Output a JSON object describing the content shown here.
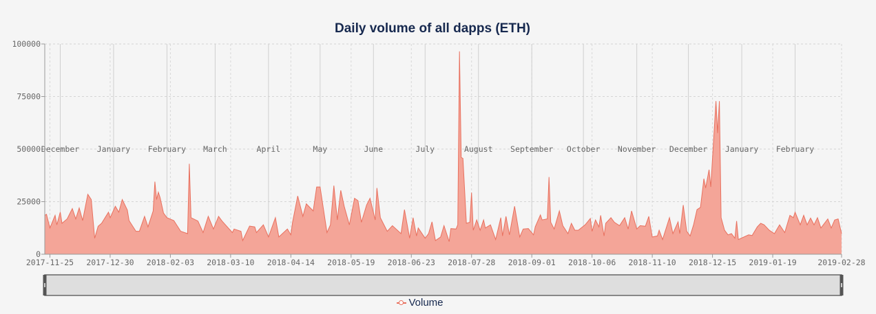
{
  "chart_data": {
    "type": "area",
    "title": "Daily volume of all dapps (ETH)",
    "xlabel": "",
    "ylabel": "",
    "ylim": [
      0,
      100000
    ],
    "xlim": [
      "2017-11-22",
      "2019-02-28"
    ],
    "grid": true,
    "legend_position": "bottom",
    "y_ticks": [
      "0",
      "25000",
      "50000",
      "75000",
      "100000"
    ],
    "x_ticks": [
      "2017-11-25",
      "2017-12-30",
      "2018-02-03",
      "2018-03-10",
      "2018-04-14",
      "2018-05-19",
      "2018-06-23",
      "2018-07-28",
      "2018-09-01",
      "2018-10-06",
      "2018-11-10",
      "2018-12-15",
      "2019-01-19",
      "2019-02-28"
    ],
    "month_markers": [
      {
        "date": "2017-12-01",
        "label": "December"
      },
      {
        "date": "2018-01-01",
        "label": "January"
      },
      {
        "date": "2018-02-01",
        "label": "February"
      },
      {
        "date": "2018-03-01",
        "label": "March"
      },
      {
        "date": "2018-04-01",
        "label": "April"
      },
      {
        "date": "2018-05-01",
        "label": "May"
      },
      {
        "date": "2018-06-01",
        "label": "June"
      },
      {
        "date": "2018-07-01",
        "label": "July"
      },
      {
        "date": "2018-08-01",
        "label": "August"
      },
      {
        "date": "2018-09-01",
        "label": "September"
      },
      {
        "date": "2018-10-01",
        "label": "October"
      },
      {
        "date": "2018-11-01",
        "label": "November"
      },
      {
        "date": "2018-12-01",
        "label": "December"
      },
      {
        "date": "2019-01-01",
        "label": "January"
      },
      {
        "date": "2019-02-01",
        "label": "February"
      }
    ],
    "series": [
      {
        "name": "Volume",
        "color": "#e8705e",
        "fill": "#f4a598",
        "x": [
          "2017-11-22",
          "2017-11-23",
          "2017-11-25",
          "2017-11-28",
          "2017-11-29",
          "2017-12-01",
          "2017-12-02",
          "2017-12-05",
          "2017-12-08",
          "2017-12-10",
          "2017-12-12",
          "2017-12-14",
          "2017-12-17",
          "2017-12-19",
          "2017-12-21",
          "2017-12-23",
          "2017-12-25",
          "2017-12-29",
          "2017-12-30",
          "2018-01-02",
          "2018-01-04",
          "2018-01-06",
          "2018-01-09",
          "2018-01-10",
          "2018-01-14",
          "2018-01-16",
          "2018-01-19",
          "2018-01-21",
          "2018-01-24",
          "2018-01-25",
          "2018-01-26",
          "2018-01-27",
          "2018-01-28",
          "2018-01-30",
          "2018-02-01",
          "2018-02-05",
          "2018-02-09",
          "2018-02-13",
          "2018-02-14",
          "2018-02-15",
          "2018-02-19",
          "2018-02-22",
          "2018-02-25",
          "2018-02-28",
          "2018-03-03",
          "2018-03-05",
          "2018-03-11",
          "2018-03-12",
          "2018-03-16",
          "2018-03-17",
          "2018-03-21",
          "2018-03-24",
          "2018-03-25",
          "2018-03-29",
          "2018-04-01",
          "2018-04-05",
          "2018-04-07",
          "2018-04-12",
          "2018-04-14",
          "2018-04-15",
          "2018-04-18",
          "2018-04-21",
          "2018-04-23",
          "2018-04-27",
          "2018-04-29",
          "2018-05-01",
          "2018-05-05",
          "2018-05-07",
          "2018-05-09",
          "2018-05-11",
          "2018-05-13",
          "2018-05-15",
          "2018-05-18",
          "2018-05-21",
          "2018-05-23",
          "2018-05-25",
          "2018-05-28",
          "2018-05-30",
          "2018-06-02",
          "2018-06-03",
          "2018-06-05",
          "2018-06-09",
          "2018-06-12",
          "2018-06-17",
          "2018-06-19",
          "2018-06-22",
          "2018-06-24",
          "2018-06-26",
          "2018-06-27",
          "2018-07-01",
          "2018-07-03",
          "2018-07-05",
          "2018-07-07",
          "2018-07-10",
          "2018-07-12",
          "2018-07-15",
          "2018-07-16",
          "2018-07-19",
          "2018-07-20",
          "2018-07-21",
          "2018-07-22",
          "2018-07-23",
          "2018-07-25",
          "2018-07-27",
          "2018-07-28",
          "2018-07-29",
          "2018-07-31",
          "2018-08-02",
          "2018-08-04",
          "2018-08-05",
          "2018-08-08",
          "2018-08-11",
          "2018-08-14",
          "2018-08-15",
          "2018-08-17",
          "2018-08-19",
          "2018-08-22",
          "2018-08-25",
          "2018-08-27",
          "2018-08-30",
          "2018-09-02",
          "2018-09-03",
          "2018-09-06",
          "2018-09-07",
          "2018-09-10",
          "2018-09-11",
          "2018-09-12",
          "2018-09-14",
          "2018-09-17",
          "2018-09-19",
          "2018-09-22",
          "2018-09-24",
          "2018-09-26",
          "2018-09-28",
          "2018-10-02",
          "2018-10-05",
          "2018-10-06",
          "2018-10-08",
          "2018-10-10",
          "2018-10-11",
          "2018-10-13",
          "2018-10-14",
          "2018-10-17",
          "2018-10-19",
          "2018-10-22",
          "2018-10-25",
          "2018-10-27",
          "2018-10-29",
          "2018-11-01",
          "2018-11-03",
          "2018-11-06",
          "2018-11-08",
          "2018-11-10",
          "2018-11-13",
          "2018-11-14",
          "2018-11-16",
          "2018-11-20",
          "2018-11-22",
          "2018-11-25",
          "2018-11-26",
          "2018-11-28",
          "2018-11-30",
          "2018-12-02",
          "2018-12-04",
          "2018-12-06",
          "2018-12-08",
          "2018-12-10",
          "2018-12-11",
          "2018-12-13",
          "2018-12-14",
          "2018-12-17",
          "2018-12-18",
          "2018-12-19",
          "2018-12-20",
          "2018-12-22",
          "2018-12-24",
          "2018-12-26",
          "2018-12-28",
          "2018-12-29",
          "2018-12-30",
          "2019-01-05",
          "2019-01-07",
          "2019-01-10",
          "2019-01-12",
          "2019-01-14",
          "2019-01-17",
          "2019-01-20",
          "2019-01-23",
          "2019-01-26",
          "2019-01-29",
          "2019-01-31",
          "2019-02-01",
          "2019-02-04",
          "2019-02-06",
          "2019-02-08",
          "2019-02-10",
          "2019-02-12",
          "2019-02-14",
          "2019-02-16",
          "2019-02-20",
          "2019-02-22",
          "2019-02-24",
          "2019-02-26",
          "2019-02-28"
        ],
        "values": [
          18500,
          19000,
          12500,
          18500,
          14000,
          20000,
          14700,
          16800,
          21700,
          16800,
          22000,
          16000,
          28500,
          26000,
          7600,
          13300,
          14700,
          20000,
          17400,
          22800,
          20000,
          26000,
          21000,
          16000,
          10900,
          10900,
          18000,
          13000,
          20600,
          34500,
          26000,
          29500,
          27000,
          19600,
          17400,
          16000,
          10900,
          9800,
          43000,
          17400,
          15800,
          10300,
          18000,
          12000,
          18000,
          15800,
          10300,
          12000,
          10900,
          6500,
          13400,
          13000,
          10300,
          14000,
          8200,
          17400,
          8200,
          12000,
          9200,
          15200,
          27700,
          18000,
          24000,
          20600,
          32000,
          32000,
          10300,
          14000,
          32600,
          16300,
          30400,
          22800,
          14000,
          26600,
          25500,
          15200,
          23400,
          26600,
          16300,
          31500,
          17400,
          10900,
          13600,
          9800,
          21200,
          7600,
          17400,
          8700,
          12500,
          7600,
          9800,
          15400,
          6500,
          8200,
          13600,
          6000,
          12200,
          12000,
          14000,
          96500,
          46000,
          45600,
          14700,
          15200,
          29300,
          11400,
          16300,
          11400,
          16300,
          12500,
          14000,
          7000,
          17400,
          8700,
          18000,
          9200,
          22800,
          8200,
          12000,
          12200,
          9200,
          13000,
          18700,
          16300,
          16800,
          36700,
          15200,
          12000,
          20600,
          13600,
          9800,
          14700,
          11400,
          11400,
          14000,
          17000,
          10900,
          16300,
          13000,
          18500,
          8700,
          14700,
          17400,
          15200,
          13600,
          17400,
          12000,
          20600,
          12000,
          13600,
          13300,
          18000,
          8200,
          8700,
          11400,
          7000,
          17400,
          9800,
          15400,
          9800,
          23400,
          10900,
          8700,
          14000,
          21200,
          22300,
          35900,
          31500,
          40200,
          32000,
          72800,
          57600,
          72800,
          17400,
          11400,
          9200,
          9800,
          7600,
          15800,
          7000,
          9200,
          8900,
          13000,
          14700,
          14000,
          11400,
          9800,
          14000,
          10300,
          18500,
          17400,
          20000,
          14000,
          18500,
          14000,
          17200,
          14000,
          17400,
          12500,
          16800,
          12500,
          16300,
          16800,
          9800
        ]
      }
    ]
  }
}
